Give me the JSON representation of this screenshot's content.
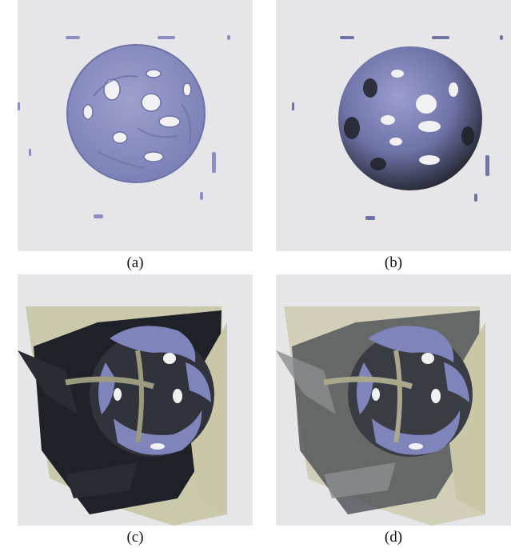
{
  "figure": {
    "panels": [
      {
        "id": "a",
        "label": "(a)"
      },
      {
        "id": "b",
        "label": "(b)"
      },
      {
        "id": "c",
        "label": "(c)"
      },
      {
        "id": "d",
        "label": "(d)"
      }
    ]
  },
  "colors": {
    "background": "#e6e6e8",
    "isosurface": "#8a8fc0",
    "shadow": "#1f2128",
    "plane": "#c9c7a8"
  }
}
